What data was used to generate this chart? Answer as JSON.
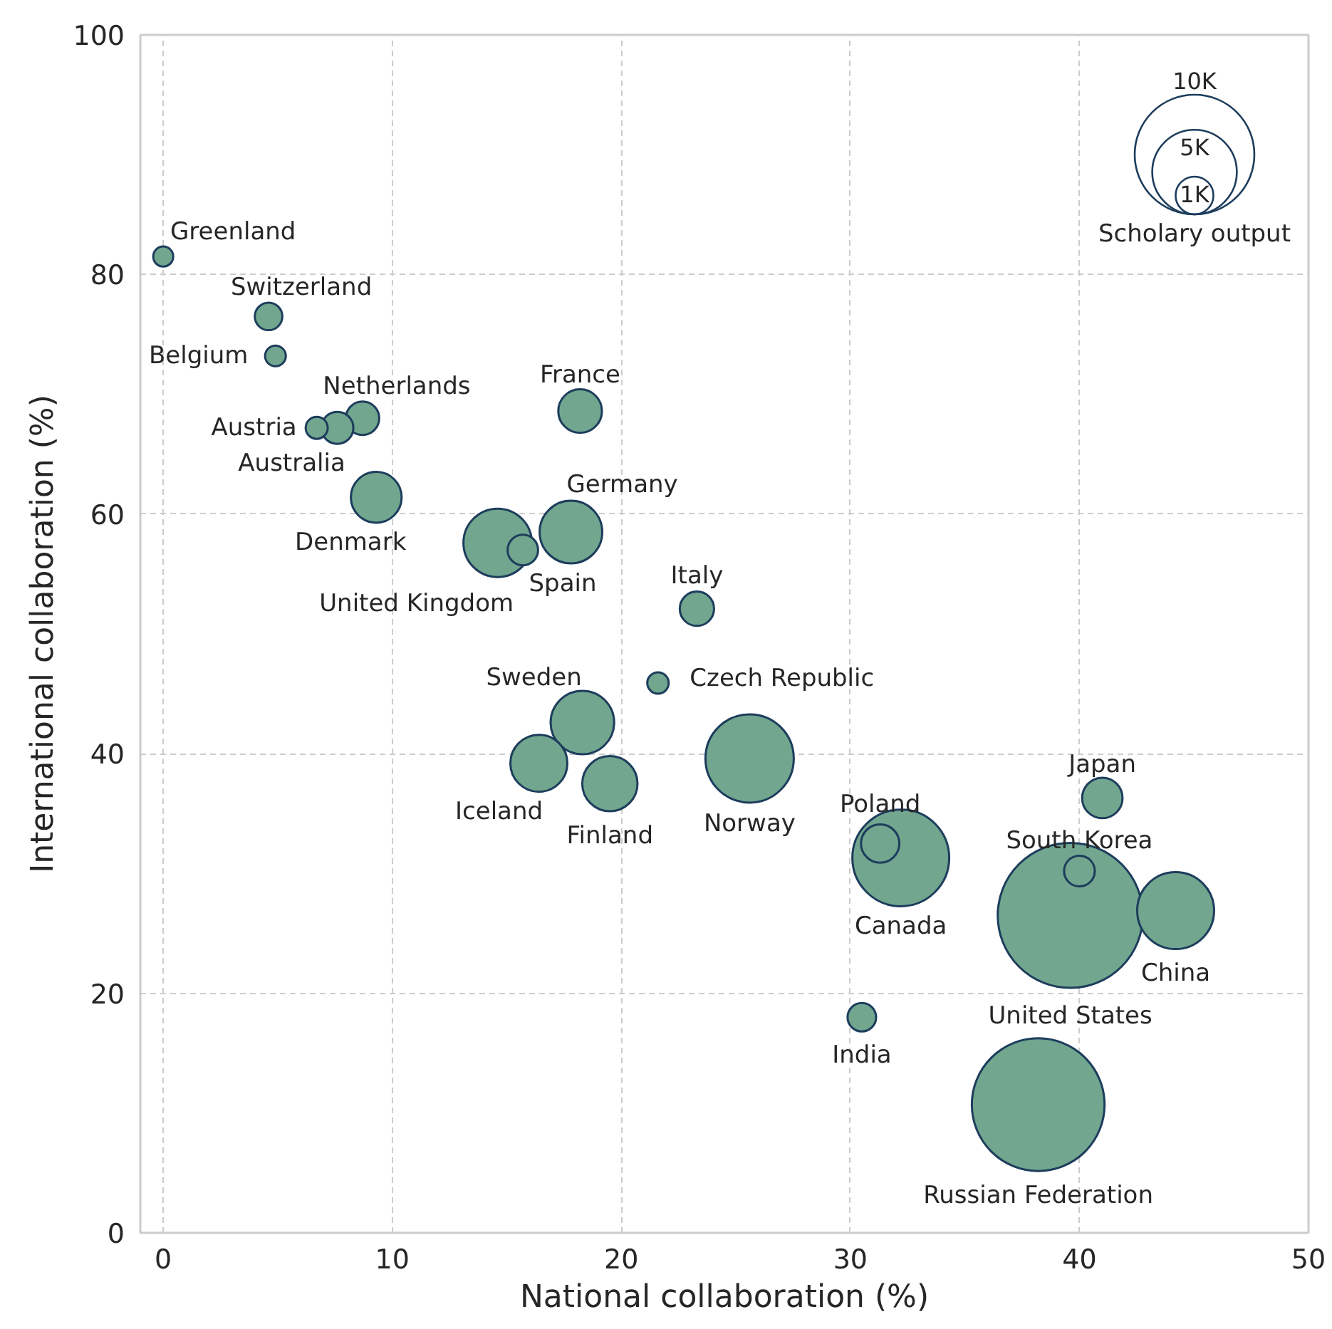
{
  "chart_data": {
    "type": "bubble",
    "xlabel": "National collaboration (%)",
    "ylabel": "International collaboration (%)",
    "xlim": [
      -1,
      50
    ],
    "ylim": [
      0,
      100
    ],
    "xticks": [
      0,
      10,
      20,
      30,
      40,
      50
    ],
    "yticks": [
      0,
      20,
      40,
      60,
      80,
      100
    ],
    "grid": true,
    "legend_title": "Scholary output",
    "size_legend": [
      {
        "value": 10000,
        "label": "10K"
      },
      {
        "value": 5000,
        "label": "5K"
      },
      {
        "value": 1000,
        "label": "1K"
      }
    ],
    "x": [
      0,
      4.6,
      4.9,
      6.7,
      7.6,
      8.7,
      18.2,
      9.3,
      14.6,
      15.7,
      17.8,
      23.3,
      21.6,
      18.3,
      16.4,
      19.5,
      25.6,
      31.3,
      32.2,
      41.0,
      40.0,
      39.6,
      44.2,
      30.5,
      38.2
    ],
    "series": [
      {
        "color": "#72a68f",
        "values": [
          81.5,
          76.5,
          73.2,
          67.2,
          67.2,
          68.0,
          68.6,
          61.4,
          57.6,
          57.0,
          58.5,
          52.1,
          45.9,
          42.6,
          39.2,
          37.5,
          39.6,
          32.5,
          31.3,
          36.3,
          30.2,
          26.5,
          26.9,
          18.0,
          10.7
        ],
        "sizes": [
          280,
          530,
          300,
          340,
          720,
          780,
          1330,
          1800,
          3270,
          650,
          2740,
          820,
          320,
          2820,
          2270,
          2130,
          5450,
          1030,
          6550,
          1140,
          660,
          14700,
          4130,
          570,
          12300
        ]
      }
    ],
    "annotations": [
      {
        "text": "Greenland",
        "x": 0,
        "y": 81.5
      },
      {
        "text": "Switzerland",
        "x": 4.6,
        "y": 76.5
      },
      {
        "text": "Belgium",
        "x": 4.9,
        "y": 73.2
      },
      {
        "text": "Austria",
        "x": 6.7,
        "y": 67.2
      },
      {
        "text": "Australia",
        "x": 7.6,
        "y": 67.2
      },
      {
        "text": "Netherlands",
        "x": 8.7,
        "y": 68.0
      },
      {
        "text": "France",
        "x": 18.2,
        "y": 68.6
      },
      {
        "text": "Denmark",
        "x": 9.3,
        "y": 61.4
      },
      {
        "text": "United Kingdom",
        "x": 14.6,
        "y": 57.6
      },
      {
        "text": "Spain",
        "x": 15.7,
        "y": 57.0
      },
      {
        "text": "Germany",
        "x": 17.8,
        "y": 58.5
      },
      {
        "text": "Italy",
        "x": 23.3,
        "y": 52.1
      },
      {
        "text": "Czech Republic",
        "x": 21.6,
        "y": 45.9
      },
      {
        "text": "Sweden",
        "x": 18.3,
        "y": 42.6
      },
      {
        "text": "Iceland",
        "x": 16.4,
        "y": 39.2
      },
      {
        "text": "Finland",
        "x": 19.5,
        "y": 37.5
      },
      {
        "text": "Norway",
        "x": 25.6,
        "y": 39.6
      },
      {
        "text": "Poland",
        "x": 31.3,
        "y": 32.5
      },
      {
        "text": "Canada",
        "x": 32.2,
        "y": 31.3
      },
      {
        "text": "Japan",
        "x": 41.0,
        "y": 36.3
      },
      {
        "text": "South Korea",
        "x": 40.0,
        "y": 30.2
      },
      "United States",
      {
        "text": "China",
        "x": 44.2,
        "y": 26.9
      },
      {
        "text": "India",
        "x": 30.5,
        "y": 18.0
      },
      "Russian Federation"
    ]
  }
}
